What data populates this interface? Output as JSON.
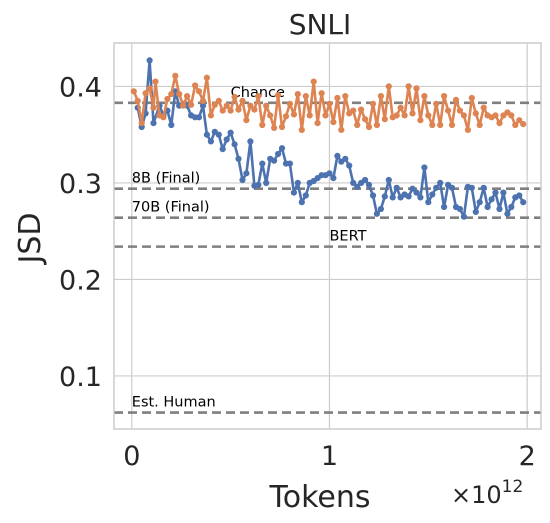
{
  "chart_data": {
    "type": "line",
    "title": "SNLI",
    "xlabel": "Tokens",
    "ylabel": "JSD",
    "x_offset_label": "×10",
    "x_offset_exponent": "12",
    "xlim": [
      -0.09,
      2.07
    ],
    "ylim": [
      0.045,
      0.445
    ],
    "x_ticks": [
      0,
      1,
      2
    ],
    "x_tick_labels": [
      "0",
      "1",
      "2"
    ],
    "y_ticks": [
      0.1,
      0.2,
      0.3,
      0.4
    ],
    "y_tick_labels": [
      "0.1",
      "0.2",
      "0.3",
      "0.4"
    ],
    "grid": true,
    "reference_lines": [
      {
        "label": "Chance",
        "y": 0.383,
        "label_x": 0.5
      },
      {
        "label": "8B (Final)",
        "y": 0.294,
        "label_x": 0.0
      },
      {
        "label": "70B (Final)",
        "y": 0.264,
        "label_x": 0.0
      },
      {
        "label": "BERT",
        "y": 0.234,
        "label_x": 1.0
      },
      {
        "label": "Est. Human",
        "y": 0.062,
        "label_x": 0.0
      }
    ],
    "series": [
      {
        "color": "#4c72b0",
        "x": [
          0.03,
          0.05,
          0.07,
          0.09,
          0.11,
          0.14,
          0.16,
          0.18,
          0.2,
          0.22,
          0.24,
          0.26,
          0.28,
          0.3,
          0.32,
          0.34,
          0.36,
          0.38,
          0.4,
          0.42,
          0.44,
          0.46,
          0.48,
          0.5,
          0.52,
          0.54,
          0.56,
          0.58,
          0.6,
          0.62,
          0.64,
          0.66,
          0.68,
          0.7,
          0.72,
          0.74,
          0.76,
          0.78,
          0.8,
          0.82,
          0.84,
          0.86,
          0.88,
          0.9,
          0.92,
          0.94,
          0.96,
          0.98,
          1.0,
          1.02,
          1.04,
          1.06,
          1.08,
          1.1,
          1.12,
          1.14,
          1.16,
          1.18,
          1.2,
          1.22,
          1.24,
          1.26,
          1.28,
          1.3,
          1.32,
          1.34,
          1.36,
          1.38,
          1.4,
          1.42,
          1.44,
          1.46,
          1.48,
          1.5,
          1.52,
          1.54,
          1.56,
          1.58,
          1.6,
          1.62,
          1.64,
          1.66,
          1.68,
          1.7,
          1.72,
          1.74,
          1.76,
          1.78,
          1.8,
          1.82,
          1.84,
          1.86,
          1.88,
          1.9,
          1.92,
          1.94,
          1.96,
          1.98
        ],
        "y": [
          0.378,
          0.358,
          0.372,
          0.427,
          0.362,
          0.38,
          0.37,
          0.375,
          0.36,
          0.395,
          0.38,
          0.382,
          0.38,
          0.37,
          0.368,
          0.368,
          0.38,
          0.35,
          0.343,
          0.353,
          0.35,
          0.335,
          0.345,
          0.352,
          0.34,
          0.325,
          0.303,
          0.31,
          0.343,
          0.297,
          0.298,
          0.32,
          0.3,
          0.325,
          0.323,
          0.33,
          0.336,
          0.32,
          0.32,
          0.29,
          0.3,
          0.28,
          0.287,
          0.3,
          0.302,
          0.305,
          0.308,
          0.308,
          0.31,
          0.305,
          0.328,
          0.322,
          0.325,
          0.318,
          0.3,
          0.296,
          0.3,
          0.303,
          0.298,
          0.287,
          0.268,
          0.273,
          0.286,
          0.303,
          0.285,
          0.295,
          0.285,
          0.288,
          0.286,
          0.294,
          0.29,
          0.285,
          0.316,
          0.28,
          0.288,
          0.295,
          0.3,
          0.275,
          0.298,
          0.295,
          0.275,
          0.273,
          0.265,
          0.296,
          0.295,
          0.27,
          0.28,
          0.295,
          0.275,
          0.283,
          0.29,
          0.273,
          0.29,
          0.268,
          0.275,
          0.285,
          0.287,
          0.28
        ]
      },
      {
        "color": "#dd8452",
        "x": [
          0.01,
          0.03,
          0.05,
          0.07,
          0.09,
          0.11,
          0.12,
          0.14,
          0.16,
          0.18,
          0.2,
          0.22,
          0.24,
          0.26,
          0.28,
          0.3,
          0.32,
          0.34,
          0.36,
          0.38,
          0.4,
          0.42,
          0.44,
          0.46,
          0.48,
          0.5,
          0.52,
          0.54,
          0.56,
          0.58,
          0.6,
          0.62,
          0.64,
          0.66,
          0.68,
          0.7,
          0.72,
          0.74,
          0.76,
          0.78,
          0.8,
          0.82,
          0.84,
          0.86,
          0.88,
          0.9,
          0.92,
          0.94,
          0.96,
          0.98,
          1.0,
          1.02,
          1.04,
          1.06,
          1.08,
          1.1,
          1.12,
          1.14,
          1.16,
          1.18,
          1.2,
          1.22,
          1.24,
          1.26,
          1.28,
          1.3,
          1.32,
          1.34,
          1.36,
          1.38,
          1.4,
          1.42,
          1.44,
          1.46,
          1.48,
          1.5,
          1.52,
          1.54,
          1.56,
          1.58,
          1.6,
          1.62,
          1.64,
          1.66,
          1.68,
          1.7,
          1.72,
          1.74,
          1.76,
          1.78,
          1.8,
          1.82,
          1.84,
          1.86,
          1.88,
          1.9,
          1.92,
          1.94,
          1.96,
          1.98
        ],
        "y": [
          0.395,
          0.385,
          0.362,
          0.393,
          0.398,
          0.378,
          0.405,
          0.37,
          0.368,
          0.387,
          0.392,
          0.411,
          0.392,
          0.38,
          0.39,
          0.381,
          0.401,
          0.395,
          0.385,
          0.409,
          0.37,
          0.381,
          0.385,
          0.375,
          0.38,
          0.375,
          0.389,
          0.376,
          0.385,
          0.365,
          0.38,
          0.376,
          0.39,
          0.36,
          0.38,
          0.37,
          0.357,
          0.391,
          0.358,
          0.369,
          0.382,
          0.371,
          0.392,
          0.355,
          0.39,
          0.37,
          0.405,
          0.362,
          0.393,
          0.37,
          0.382,
          0.363,
          0.388,
          0.355,
          0.39,
          0.372,
          0.375,
          0.36,
          0.376,
          0.366,
          0.358,
          0.382,
          0.36,
          0.39,
          0.366,
          0.4,
          0.368,
          0.37,
          0.378,
          0.37,
          0.4,
          0.372,
          0.398,
          0.365,
          0.39,
          0.37,
          0.36,
          0.382,
          0.36,
          0.39,
          0.375,
          0.36,
          0.386,
          0.375,
          0.37,
          0.355,
          0.388,
          0.372,
          0.36,
          0.378,
          0.37,
          0.368,
          0.37,
          0.362,
          0.37,
          0.373,
          0.37,
          0.36,
          0.365,
          0.361
        ]
      }
    ]
  }
}
